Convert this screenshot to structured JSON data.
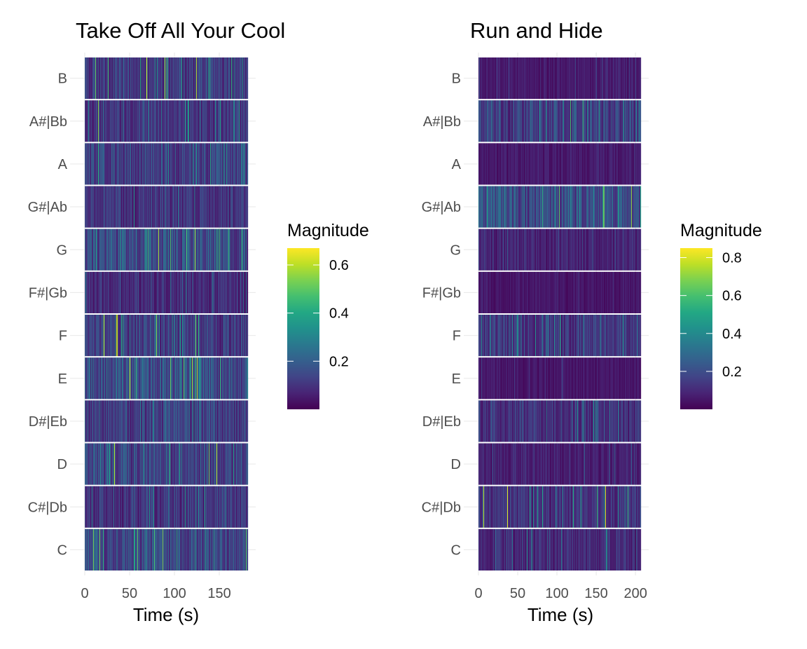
{
  "chart_data": [
    {
      "type": "heatmap",
      "title": "Take Off All Your Cool",
      "xlabel": "Time (s)",
      "ylabel": "",
      "xlim": [
        0,
        182
      ],
      "x_ticks": [
        0,
        50,
        100,
        150
      ],
      "y_categories": [
        "C",
        "C#|Db",
        "D",
        "D#|Eb",
        "E",
        "F",
        "F#|Gb",
        "G",
        "G#|Ab",
        "A",
        "A#|Bb",
        "B"
      ],
      "legend": {
        "title": "Magnitude",
        "ticks": [
          0.2,
          0.4,
          0.6
        ],
        "min": 0.0,
        "max": 0.67,
        "placement": "right"
      },
      "series_summary": [
        {
          "pitch": "C",
          "mean": 0.14,
          "peak": 0.55
        },
        {
          "pitch": "C#|Db",
          "mean": 0.1,
          "peak": 0.4
        },
        {
          "pitch": "D",
          "mean": 0.14,
          "peak": 0.6
        },
        {
          "pitch": "D#|Eb",
          "mean": 0.12,
          "peak": 0.35
        },
        {
          "pitch": "E",
          "mean": 0.16,
          "peak": 0.65
        },
        {
          "pitch": "F",
          "mean": 0.12,
          "peak": 0.6
        },
        {
          "pitch": "F#|Gb",
          "mean": 0.08,
          "peak": 0.3
        },
        {
          "pitch": "G",
          "mean": 0.15,
          "peak": 0.65
        },
        {
          "pitch": "G#|Ab",
          "mean": 0.1,
          "peak": 0.35
        },
        {
          "pitch": "A",
          "mean": 0.13,
          "peak": 0.45
        },
        {
          "pitch": "A#|Bb",
          "mean": 0.1,
          "peak": 0.55
        },
        {
          "pitch": "B",
          "mean": 0.12,
          "peak": 0.67
        }
      ]
    },
    {
      "type": "heatmap",
      "title": "Run and Hide",
      "xlabel": "Time (s)",
      "ylabel": "",
      "xlim": [
        0,
        207
      ],
      "x_ticks": [
        0,
        50,
        100,
        150,
        200
      ],
      "y_categories": [
        "C",
        "C#|Db",
        "D",
        "D#|Eb",
        "E",
        "F",
        "F#|Gb",
        "G",
        "G#|Ab",
        "A",
        "A#|Bb",
        "B"
      ],
      "legend": {
        "title": "Magnitude",
        "ticks": [
          0.2,
          0.4,
          0.6,
          0.8
        ],
        "min": 0.0,
        "max": 0.85,
        "placement": "right"
      },
      "series_summary": [
        {
          "pitch": "C",
          "mean": 0.1,
          "peak": 0.45
        },
        {
          "pitch": "C#|Db",
          "mean": 0.12,
          "peak": 0.85
        },
        {
          "pitch": "D",
          "mean": 0.07,
          "peak": 0.25
        },
        {
          "pitch": "D#|Eb",
          "mean": 0.12,
          "peak": 0.45
        },
        {
          "pitch": "E",
          "mean": 0.05,
          "peak": 0.2
        },
        {
          "pitch": "F",
          "mean": 0.13,
          "peak": 0.55
        },
        {
          "pitch": "F#|Gb",
          "mean": 0.05,
          "peak": 0.15
        },
        {
          "pitch": "G",
          "mean": 0.08,
          "peak": 0.25
        },
        {
          "pitch": "G#|Ab",
          "mean": 0.22,
          "peak": 0.7
        },
        {
          "pitch": "A",
          "mean": 0.06,
          "peak": 0.2
        },
        {
          "pitch": "A#|Bb",
          "mean": 0.16,
          "peak": 0.6
        },
        {
          "pitch": "B",
          "mean": 0.06,
          "peak": 0.2
        }
      ]
    }
  ]
}
